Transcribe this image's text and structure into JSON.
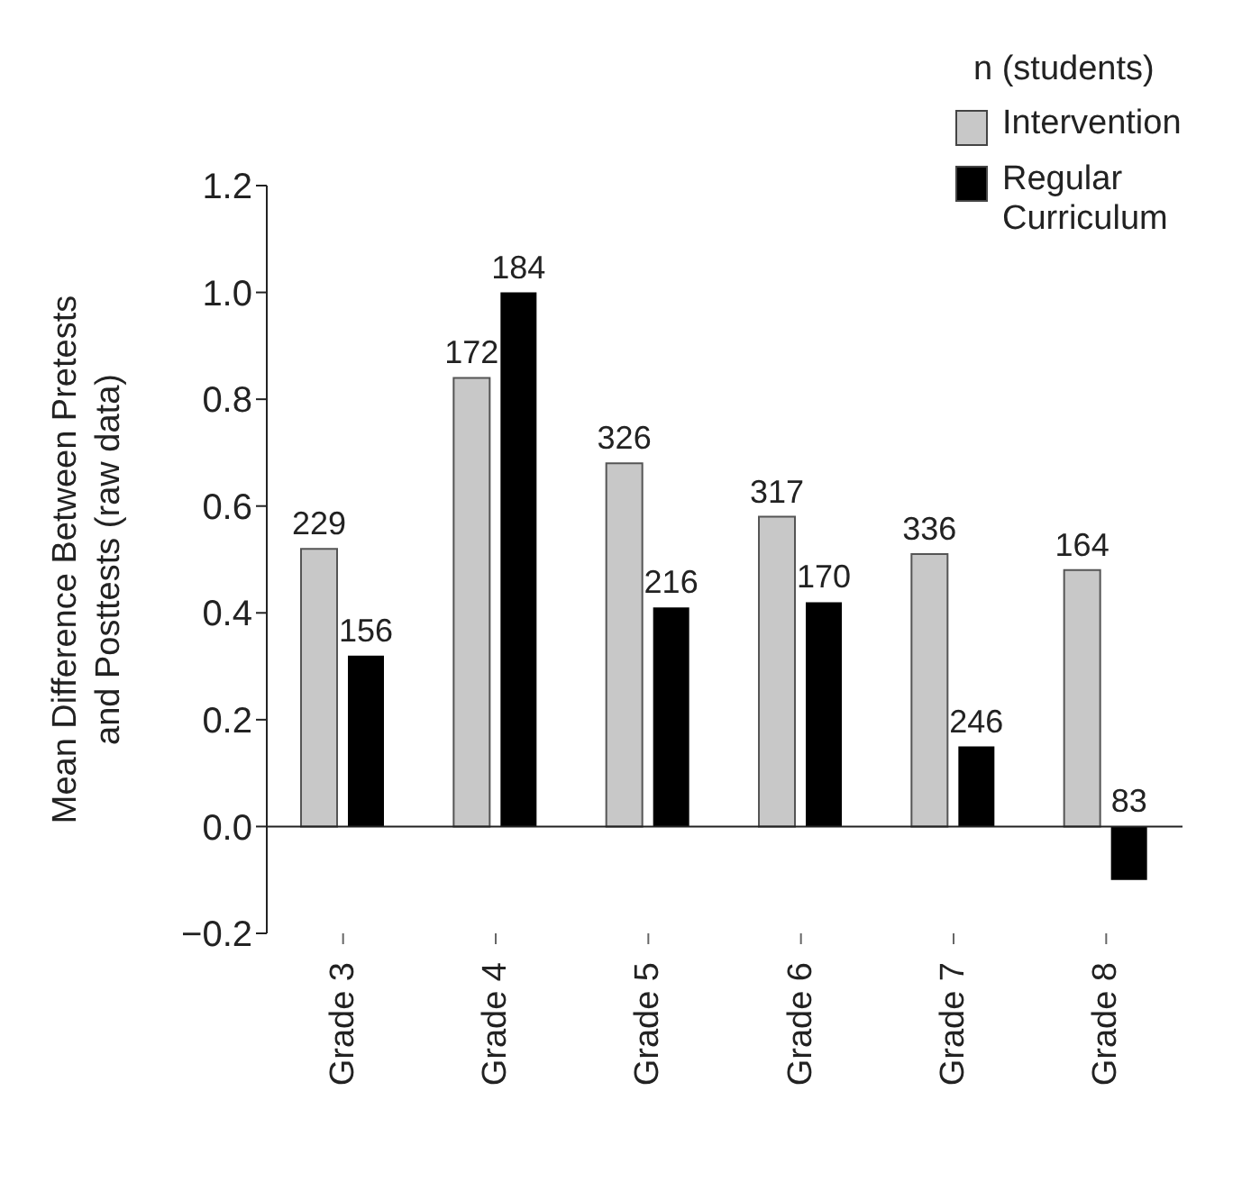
{
  "chart_data": {
    "type": "bar",
    "ylabel": "Mean Difference Between Pretests\nand Posttests (raw data)",
    "legend_title": "n (students)",
    "categories": [
      "Grade 3",
      "Grade 4",
      "Grade 5",
      "Grade 6",
      "Grade 7",
      "Grade 8"
    ],
    "series": [
      {
        "name": "Intervention",
        "color": "#c8c8c8",
        "values": [
          0.52,
          0.84,
          0.68,
          0.58,
          0.51,
          0.48
        ]
      },
      {
        "name": "Regular Curriculum",
        "color": "#000000",
        "values": [
          0.32,
          1.0,
          0.41,
          0.42,
          0.15,
          -0.1
        ]
      }
    ],
    "annotations": [
      {
        "text": "229",
        "x": "Grade 3",
        "y": 0.52
      },
      {
        "text": "156",
        "x": "Grade 3",
        "y": 0.32
      },
      {
        "text": "172",
        "x": "Grade 4",
        "y": 0.84
      },
      {
        "text": "184",
        "x": "Grade 4",
        "y": 1.0
      },
      {
        "text": "326",
        "x": "Grade 5",
        "y": 0.68
      },
      {
        "text": "216",
        "x": "Grade 5",
        "y": 0.41
      },
      {
        "text": "317",
        "x": "Grade 6",
        "y": 0.58
      },
      {
        "text": "170",
        "x": "Grade 6",
        "y": 0.42
      },
      {
        "text": "336",
        "x": "Grade 7",
        "y": 0.51
      },
      {
        "text": "246",
        "x": "Grade 7",
        "y": 0.15
      },
      {
        "text": "164",
        "x": "Grade 8",
        "y": 0.48
      },
      {
        "text": "83",
        "x": "Grade 8",
        "y": -0.1
      }
    ],
    "ylim": [
      -0.2,
      1.2
    ],
    "yticks": [
      {
        "value": -0.2,
        "label": "−0.2"
      },
      {
        "value": 0,
        "label": "0.0"
      },
      {
        "value": 0.2,
        "label": "0.2"
      },
      {
        "value": 0.4,
        "label": "0.4"
      },
      {
        "value": 0.6,
        "label": "0.6"
      },
      {
        "value": 0.8,
        "label": "0.8"
      },
      {
        "value": 1.0,
        "label": "1.0"
      },
      {
        "value": 1.2,
        "label": "1.2"
      }
    ],
    "grid": false,
    "ref_lines": [
      {
        "axis": "y",
        "value": 0,
        "color": "#222222"
      }
    ],
    "legend": "top right"
  }
}
